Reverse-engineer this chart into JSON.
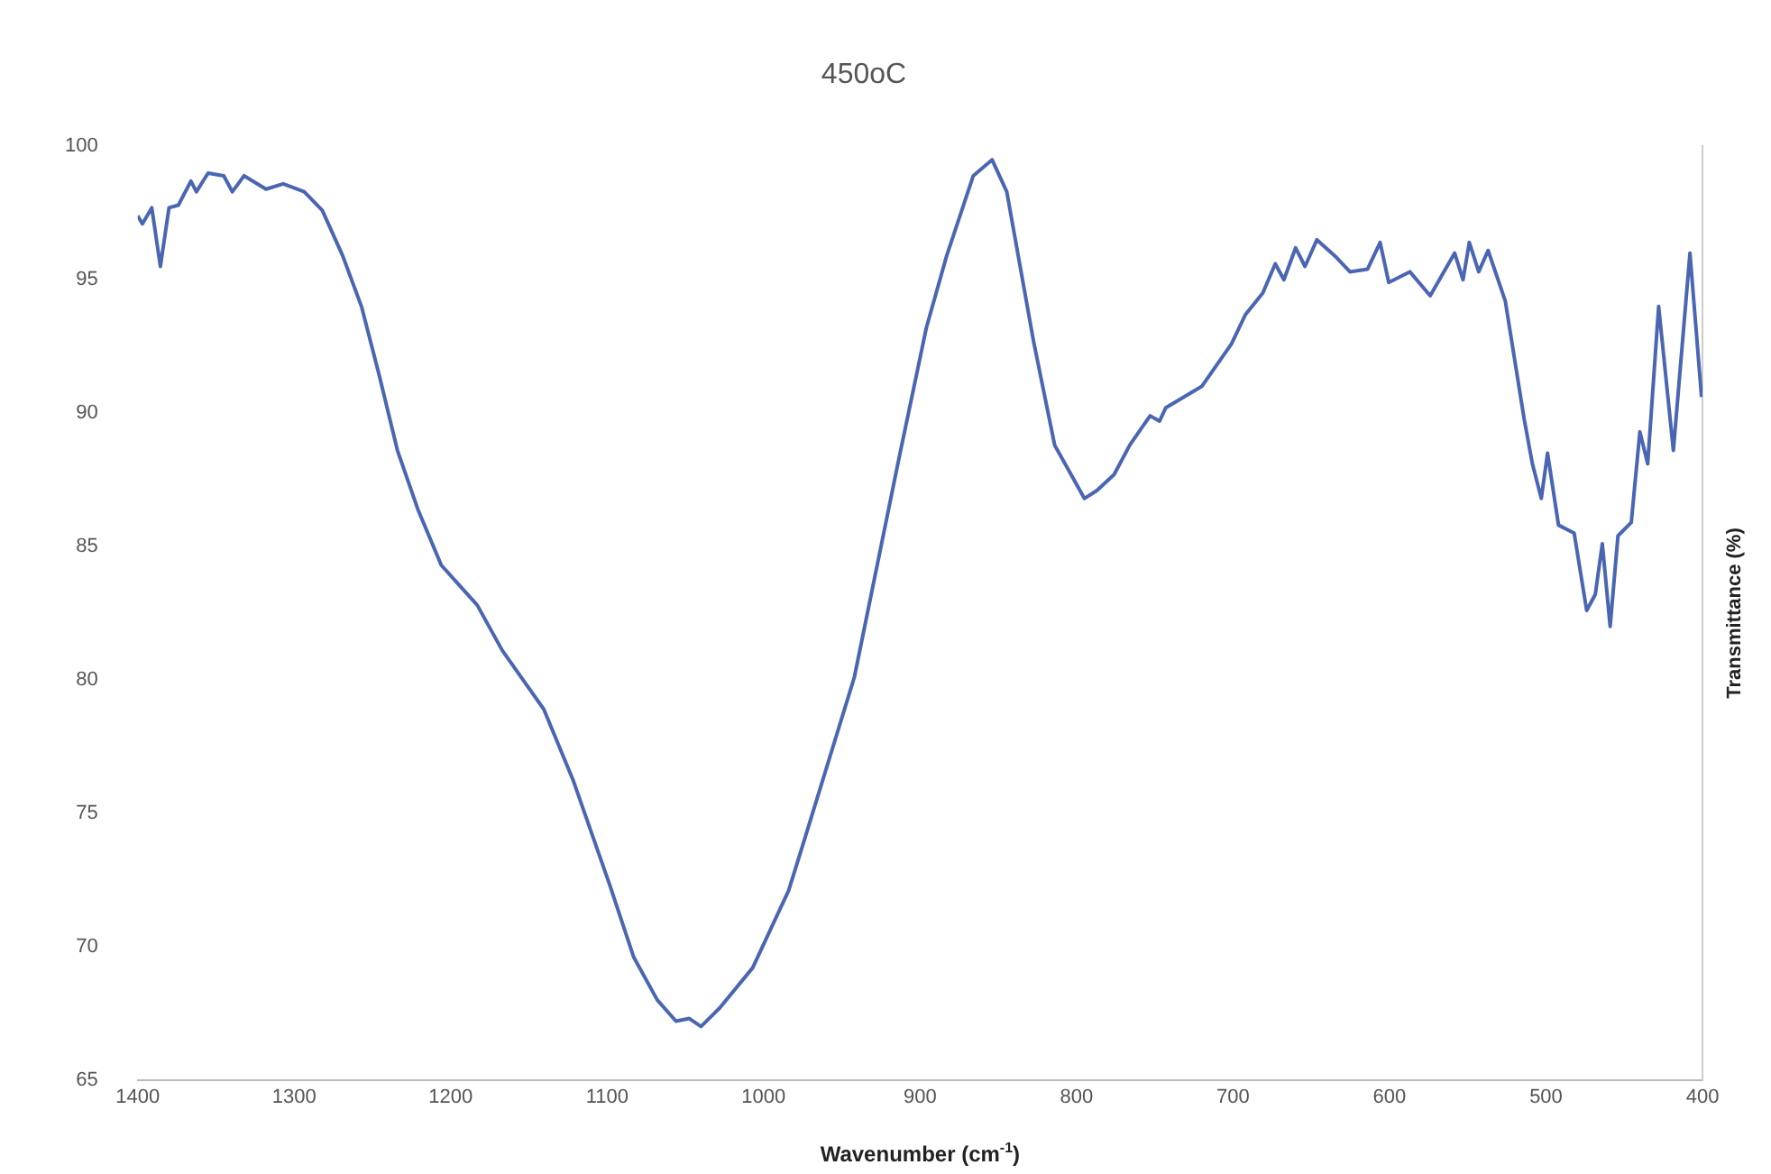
{
  "chart_data": {
    "type": "line",
    "title": "450oC",
    "xlabel": "Wavenumber (cm$^{-1}$)",
    "ylabel": "Transmittance (%)",
    "xlim": [
      1400,
      400
    ],
    "xticks": [
      1400,
      1300,
      1200,
      1100,
      1000,
      900,
      800,
      700,
      600,
      500,
      400
    ],
    "ylim": [
      65,
      100
    ],
    "yticks": [
      65,
      70,
      75,
      80,
      85,
      90,
      95,
      100
    ],
    "grid": false,
    "legend": false,
    "marker": "none",
    "line_style": "solid",
    "series": [
      {
        "color": "#4a66b3",
        "x": [
          1400,
          1397,
          1391,
          1385.5,
          1380,
          1374,
          1366,
          1362.5,
          1355,
          1345,
          1339.5,
          1332,
          1318,
          1307,
          1293.6,
          1282,
          1269,
          1257,
          1246,
          1234,
          1221,
          1206,
          1183,
          1167,
          1140.5,
          1121.5,
          1098.3,
          1083,
          1068,
          1056,
          1047.5,
          1040,
          1028,
          1007,
          984,
          975,
          942,
          913.5,
          896,
          883,
          866,
          854,
          844.6,
          827.5,
          814,
          795,
          787,
          776,
          766,
          753,
          747,
          743,
          720,
          701,
          692,
          681,
          673,
          667.5,
          660,
          654,
          646.4,
          635,
          625.3,
          614,
          606,
          600.5,
          587,
          574,
          558.4,
          553,
          549,
          543,
          537,
          526,
          514,
          508.7,
          503,
          499,
          492,
          482,
          474,
          468.5,
          464,
          459,
          454,
          445.5,
          440,
          435,
          428,
          418.6,
          408,
          400.6
        ],
        "values": [
          97.4,
          97.1,
          97.7,
          95.5,
          97.7,
          97.8,
          98.7,
          98.3,
          99.0,
          98.9,
          98.3,
          98.9,
          98.4,
          98.6,
          98.3,
          97.6,
          95.9,
          94.0,
          91.5,
          88.6,
          86.4,
          84.3,
          82.8,
          81.1,
          78.9,
          76.2,
          72.3,
          69.6,
          68.0,
          67.2,
          67.3,
          67.0,
          67.7,
          69.2,
          72.1,
          73.8,
          80.1,
          88.3,
          93.2,
          95.9,
          98.9,
          99.5,
          98.3,
          92.7,
          88.8,
          86.8,
          87.1,
          87.7,
          88.8,
          89.9,
          89.7,
          90.2,
          91.0,
          92.6,
          93.7,
          94.5,
          95.6,
          95.0,
          96.2,
          95.5,
          96.5,
          95.9,
          95.3,
          95.4,
          96.4,
          94.9,
          95.3,
          94.4,
          96.0,
          95.0,
          96.4,
          95.3,
          96.1,
          94.2,
          89.8,
          88.1,
          86.8,
          88.5,
          85.8,
          85.5,
          82.6,
          83.2,
          85.1,
          82.0,
          85.4,
          85.9,
          89.3,
          88.1,
          94.0,
          88.6,
          96.0,
          90.6
        ]
      }
    ]
  }
}
